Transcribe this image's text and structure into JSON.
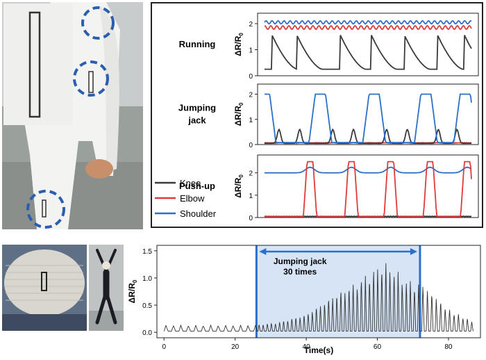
{
  "figure": {
    "activity_panel": {
      "ylabel_main": "ΔR/R",
      "ylabel_sub": "0",
      "rows": [
        {
          "title_lines": [
            "Running"
          ],
          "yticks": [
            0,
            1,
            2
          ]
        },
        {
          "title_lines": [
            "Jumping",
            "jack"
          ],
          "yticks": [
            0,
            1,
            2
          ]
        },
        {
          "title_lines": [
            "Push-up"
          ],
          "yticks": [
            0,
            1,
            2
          ]
        }
      ],
      "legend": [
        "Knee",
        "Elbow",
        "Shoulder"
      ]
    },
    "mask_panel": {
      "annotation_lines": [
        "Jumping jack",
        "30 times"
      ]
    }
  },
  "colors": {
    "knee": "#3a3a3a",
    "elbow": "#e03a3a",
    "shoulder": "#2a6fc9",
    "highlight_fill": "#d6e4f5",
    "highlight_edge": "#2a6fc9"
  },
  "chart_data": [
    {
      "type": "line",
      "panel": "Running",
      "ylabel": "ΔR/R0",
      "ylim": [
        0,
        2.4
      ],
      "yticks": [
        0,
        1,
        2
      ],
      "x_range": [
        0,
        1
      ],
      "series": [
        {
          "name": "Knee",
          "peaks_x": [
            0.04,
            0.16,
            0.37,
            0.52,
            0.68,
            0.84,
            0.97
          ],
          "baseline": 0.25,
          "peak": 1.5
        },
        {
          "name": "Elbow",
          "approx_level": 1.85
        },
        {
          "name": "Shoulder",
          "approx_level": 2.05
        }
      ]
    },
    {
      "type": "line",
      "panel": "Jumping jack",
      "ylabel": "ΔR/R0",
      "ylim": [
        0,
        2.4
      ],
      "yticks": [
        0,
        1,
        2
      ],
      "x_range": [
        0,
        1
      ],
      "series": [
        {
          "name": "Shoulder",
          "peaks_x": [
            0.0,
            0.27,
            0.53,
            0.78,
            0.97
          ],
          "peak": 2.0
        },
        {
          "name": "Knee",
          "peaks_x": [
            0.07,
            0.17,
            0.33,
            0.43,
            0.59,
            0.69,
            0.84,
            0.93
          ],
          "peak": 0.6
        },
        {
          "name": "Elbow",
          "approx_level": 0.05
        }
      ]
    },
    {
      "type": "line",
      "panel": "Push-up",
      "ylabel": "ΔR/R0",
      "ylim": [
        0,
        2.8
      ],
      "yticks": [
        0,
        1,
        2
      ],
      "x_range": [
        0,
        1
      ],
      "series": [
        {
          "name": "Elbow",
          "peaks_x": [
            0.22,
            0.42,
            0.61,
            0.8,
            0.98
          ],
          "peak": 2.5
        },
        {
          "name": "Shoulder",
          "peaks_x": [
            0.22,
            0.42,
            0.61,
            0.8,
            0.98
          ],
          "baseline": 2.0,
          "peak": 2.25
        },
        {
          "name": "Knee",
          "approx_level": 0.02
        }
      ]
    },
    {
      "type": "line",
      "panel": "Mask respiration",
      "xlabel": "Time(s)",
      "ylabel": "ΔR/R0",
      "xlim": [
        -2,
        89
      ],
      "ylim": [
        -0.1,
        1.6
      ],
      "xticks": [
        0,
        20,
        40,
        60,
        80
      ],
      "yticks": [
        0.0,
        0.5,
        1.0,
        1.5
      ],
      "highlight": {
        "x_start": 26,
        "x_end": 72,
        "label": "Jumping jack 30 times"
      },
      "envelope": [
        {
          "x": 0,
          "peak": 0.12
        },
        {
          "x": 25,
          "peak": 0.12
        },
        {
          "x": 32,
          "peak": 0.18
        },
        {
          "x": 40,
          "peak": 0.35
        },
        {
          "x": 48,
          "peak": 0.75
        },
        {
          "x": 55,
          "peak": 1.05
        },
        {
          "x": 62,
          "peak": 1.42
        },
        {
          "x": 68,
          "peak": 1.05
        },
        {
          "x": 73,
          "peak": 0.95
        },
        {
          "x": 80,
          "peak": 0.45
        },
        {
          "x": 87,
          "peak": 0.2
        }
      ]
    }
  ]
}
